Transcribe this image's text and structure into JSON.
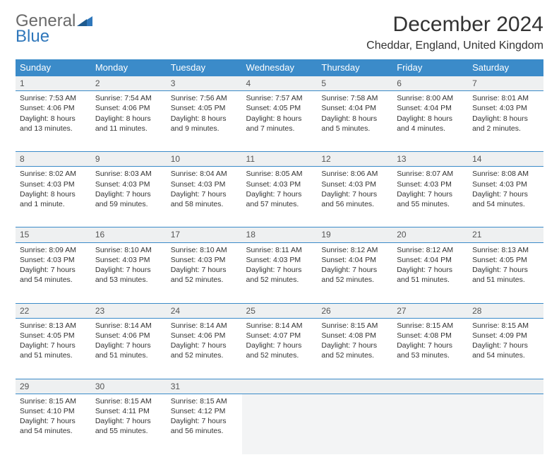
{
  "brand": {
    "word1": "General",
    "word2": "Blue"
  },
  "title": "December 2024",
  "location": "Cheddar, England, United Kingdom",
  "colors": {
    "header_bg": "#3b8bc9",
    "header_fg": "#ffffff",
    "daynum_bg": "#eef0f1",
    "border": "#3b8bc9",
    "text": "#333333",
    "brand_gray": "#6a6a6a",
    "brand_blue": "#2f77bb"
  },
  "dayHeaders": [
    "Sunday",
    "Monday",
    "Tuesday",
    "Wednesday",
    "Thursday",
    "Friday",
    "Saturday"
  ],
  "weeks": [
    [
      {
        "n": "1",
        "sr": "7:53 AM",
        "ss": "4:06 PM",
        "dl": "8 hours and 13 minutes."
      },
      {
        "n": "2",
        "sr": "7:54 AM",
        "ss": "4:06 PM",
        "dl": "8 hours and 11 minutes."
      },
      {
        "n": "3",
        "sr": "7:56 AM",
        "ss": "4:05 PM",
        "dl": "8 hours and 9 minutes."
      },
      {
        "n": "4",
        "sr": "7:57 AM",
        "ss": "4:05 PM",
        "dl": "8 hours and 7 minutes."
      },
      {
        "n": "5",
        "sr": "7:58 AM",
        "ss": "4:04 PM",
        "dl": "8 hours and 5 minutes."
      },
      {
        "n": "6",
        "sr": "8:00 AM",
        "ss": "4:04 PM",
        "dl": "8 hours and 4 minutes."
      },
      {
        "n": "7",
        "sr": "8:01 AM",
        "ss": "4:03 PM",
        "dl": "8 hours and 2 minutes."
      }
    ],
    [
      {
        "n": "8",
        "sr": "8:02 AM",
        "ss": "4:03 PM",
        "dl": "8 hours and 1 minute."
      },
      {
        "n": "9",
        "sr": "8:03 AM",
        "ss": "4:03 PM",
        "dl": "7 hours and 59 minutes."
      },
      {
        "n": "10",
        "sr": "8:04 AM",
        "ss": "4:03 PM",
        "dl": "7 hours and 58 minutes."
      },
      {
        "n": "11",
        "sr": "8:05 AM",
        "ss": "4:03 PM",
        "dl": "7 hours and 57 minutes."
      },
      {
        "n": "12",
        "sr": "8:06 AM",
        "ss": "4:03 PM",
        "dl": "7 hours and 56 minutes."
      },
      {
        "n": "13",
        "sr": "8:07 AM",
        "ss": "4:03 PM",
        "dl": "7 hours and 55 minutes."
      },
      {
        "n": "14",
        "sr": "8:08 AM",
        "ss": "4:03 PM",
        "dl": "7 hours and 54 minutes."
      }
    ],
    [
      {
        "n": "15",
        "sr": "8:09 AM",
        "ss": "4:03 PM",
        "dl": "7 hours and 54 minutes."
      },
      {
        "n": "16",
        "sr": "8:10 AM",
        "ss": "4:03 PM",
        "dl": "7 hours and 53 minutes."
      },
      {
        "n": "17",
        "sr": "8:10 AM",
        "ss": "4:03 PM",
        "dl": "7 hours and 52 minutes."
      },
      {
        "n": "18",
        "sr": "8:11 AM",
        "ss": "4:03 PM",
        "dl": "7 hours and 52 minutes."
      },
      {
        "n": "19",
        "sr": "8:12 AM",
        "ss": "4:04 PM",
        "dl": "7 hours and 52 minutes."
      },
      {
        "n": "20",
        "sr": "8:12 AM",
        "ss": "4:04 PM",
        "dl": "7 hours and 51 minutes."
      },
      {
        "n": "21",
        "sr": "8:13 AM",
        "ss": "4:05 PM",
        "dl": "7 hours and 51 minutes."
      }
    ],
    [
      {
        "n": "22",
        "sr": "8:13 AM",
        "ss": "4:05 PM",
        "dl": "7 hours and 51 minutes."
      },
      {
        "n": "23",
        "sr": "8:14 AM",
        "ss": "4:06 PM",
        "dl": "7 hours and 51 minutes."
      },
      {
        "n": "24",
        "sr": "8:14 AM",
        "ss": "4:06 PM",
        "dl": "7 hours and 52 minutes."
      },
      {
        "n": "25",
        "sr": "8:14 AM",
        "ss": "4:07 PM",
        "dl": "7 hours and 52 minutes."
      },
      {
        "n": "26",
        "sr": "8:15 AM",
        "ss": "4:08 PM",
        "dl": "7 hours and 52 minutes."
      },
      {
        "n": "27",
        "sr": "8:15 AM",
        "ss": "4:08 PM",
        "dl": "7 hours and 53 minutes."
      },
      {
        "n": "28",
        "sr": "8:15 AM",
        "ss": "4:09 PM",
        "dl": "7 hours and 54 minutes."
      }
    ],
    [
      {
        "n": "29",
        "sr": "8:15 AM",
        "ss": "4:10 PM",
        "dl": "7 hours and 54 minutes."
      },
      {
        "n": "30",
        "sr": "8:15 AM",
        "ss": "4:11 PM",
        "dl": "7 hours and 55 minutes."
      },
      {
        "n": "31",
        "sr": "8:15 AM",
        "ss": "4:12 PM",
        "dl": "7 hours and 56 minutes."
      },
      null,
      null,
      null,
      null
    ]
  ],
  "labels": {
    "sunrise": "Sunrise:",
    "sunset": "Sunset:",
    "daylight": "Daylight:"
  }
}
